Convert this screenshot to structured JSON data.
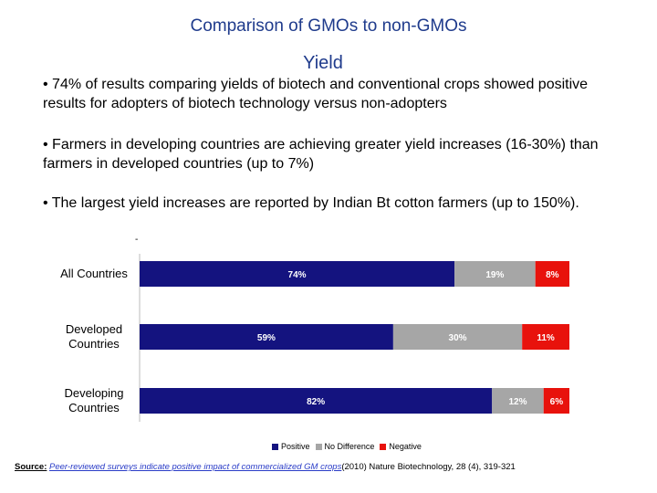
{
  "header": {
    "title": "Comparison of GMOs to non-GMOs",
    "subtitle": "Yield"
  },
  "bullets": [
    "• 74% of results comparing yields of biotech and conventional crops showed positive results for adopters of biotech technology versus non-adopters",
    "•  Farmers in developing countries are achieving greater yield increases (16-30%) than farmers in developed countries (up to 7%)",
    "• The largest yield increases are reported by Indian Bt cotton farmers (up to 150%)."
  ],
  "chart_data": {
    "type": "bar",
    "orientation": "horizontal",
    "stacked": true,
    "categories": [
      [
        "All Countries"
      ],
      [
        "Developed",
        "Countries"
      ],
      [
        "Developing",
        "Countries"
      ]
    ],
    "series": [
      {
        "name": "Positive",
        "values": [
          74,
          59,
          82
        ],
        "labels": [
          "74%",
          "59%",
          "82%"
        ],
        "color": "#14137f"
      },
      {
        "name": "No Difference",
        "values": [
          19,
          30,
          12
        ],
        "labels": [
          "19%",
          "30%",
          "12%"
        ],
        "color": "#a6a6a6"
      },
      {
        "name": "Negative",
        "values": [
          8,
          11,
          6
        ],
        "labels": [
          "8%",
          "11%",
          "6%"
        ],
        "color": "#e8120c"
      }
    ],
    "xlim": [
      0,
      100
    ],
    "legend_position": "bottom",
    "grid": false
  },
  "source": {
    "label": "Source:",
    "link_text": "Peer-reviewed surveys indicate positive impact of commercialized GM crops",
    "citation": "(2010) Nature Biotechnology, 28 (4), 319-321"
  },
  "misc": {
    "dash": "-"
  }
}
